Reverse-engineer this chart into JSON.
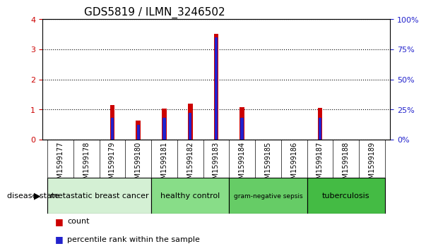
{
  "title": "GDS5819 / ILMN_3246502",
  "samples": [
    "GSM1599177",
    "GSM1599178",
    "GSM1599179",
    "GSM1599180",
    "GSM1599181",
    "GSM1599182",
    "GSM1599183",
    "GSM1599184",
    "GSM1599185",
    "GSM1599186",
    "GSM1599187",
    "GSM1599188",
    "GSM1599189"
  ],
  "counts": [
    0.0,
    0.0,
    1.15,
    0.63,
    1.02,
    1.2,
    3.52,
    1.08,
    0.0,
    0.0,
    1.05,
    0.0,
    0.0
  ],
  "percentile_ranks_pct": [
    0.0,
    0.0,
    18.0,
    12.0,
    18.0,
    22.0,
    85.0,
    18.0,
    0.0,
    0.0,
    18.0,
    0.0,
    0.0
  ],
  "ylim_left": [
    0,
    4
  ],
  "ylim_right": [
    0,
    100
  ],
  "yticks_left": [
    0,
    1,
    2,
    3,
    4
  ],
  "yticks_right": [
    0,
    25,
    50,
    75,
    100
  ],
  "bar_color": "#cc0000",
  "percentile_color": "#2222cc",
  "disease_groups": [
    {
      "label": "metastatic breast cancer",
      "start": 0,
      "end": 4,
      "color": "#d4f0d4"
    },
    {
      "label": "healthy control",
      "start": 4,
      "end": 7,
      "color": "#88dd88"
    },
    {
      "label": "gram-negative sepsis",
      "start": 7,
      "end": 10,
      "color": "#66cc66"
    },
    {
      "label": "tuberculosis",
      "start": 10,
      "end": 13,
      "color": "#44bb44"
    }
  ],
  "disease_state_label": "disease state",
  "legend_items": [
    {
      "label": "count",
      "color": "#cc0000"
    },
    {
      "label": "percentile rank within the sample",
      "color": "#2222cc"
    }
  ],
  "red_bar_width": 0.18,
  "blue_bar_width": 0.12,
  "grid_color": "#000000",
  "bg_color": "#ffffff",
  "tick_color_left": "#cc0000",
  "tick_color_right": "#2222cc",
  "title_fontsize": 11,
  "tick_fontsize": 8,
  "label_fontsize": 8,
  "sample_label_fontsize": 7,
  "sample_bg_color": "#d0d0d0"
}
